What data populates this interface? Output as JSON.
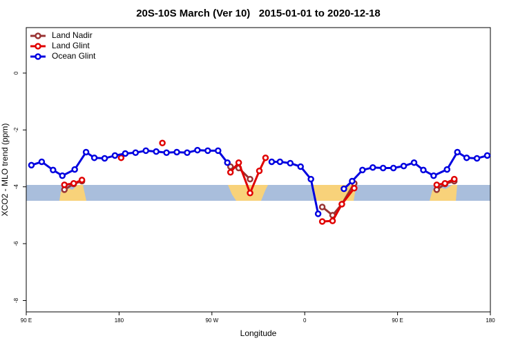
{
  "chart_data": {
    "type": "line",
    "title": "20S-10S March (Ver 10)   2015-01-01 to 2020-12-18",
    "x_label": "Longitude",
    "y_label": "XCO2 - MLO trend (ppm)",
    "xlim": [
      90,
      540
    ],
    "ylim": [
      -8.4,
      1.6
    ],
    "xticks": [
      {
        "value": 90,
        "label": "90 E"
      },
      180,
      {
        "value": 270,
        "label": "90 W"
      },
      {
        "value": 360,
        "label": "0"
      },
      {
        "value": 450,
        "label": "90 E"
      },
      {
        "value": 540,
        "label": "180"
      }
    ],
    "yticks": [
      0,
      -2,
      -4,
      -6,
      -8
    ],
    "legend": "top-left",
    "series": [
      {
        "name": "Land Nadir",
        "color": "#993333",
        "x": [
          127,
          136,
          144,
          null,
          288,
          296,
          307,
          null,
          377,
          387,
          396,
          408,
          null,
          488,
          496,
          505
        ],
        "values": [
          -4.1,
          -3.9,
          -3.8,
          null,
          -3.29,
          -3.34,
          -3.73,
          null,
          -4.71,
          -5.0,
          -4.61,
          -3.88,
          null,
          -4.1,
          -3.9,
          -3.8
        ]
      },
      {
        "name": "Land Glint",
        "color": "#e00000",
        "x": [
          127,
          136,
          144,
          null,
          182,
          null,
          222,
          null,
          288,
          296,
          307,
          316,
          322,
          null,
          377,
          387,
          396,
          408,
          null,
          488,
          496,
          505
        ],
        "values": [
          -3.93,
          -3.88,
          -3.76,
          null,
          -2.98,
          null,
          -2.46,
          null,
          -3.49,
          -3.15,
          -4.22,
          -3.44,
          -2.98,
          null,
          -5.22,
          -5.2,
          -4.61,
          -4.05,
          null,
          -3.93,
          -3.88,
          -3.73
        ]
      },
      {
        "name": "Ocean Glint",
        "color": "#0000e0",
        "x": [
          95,
          105,
          116,
          125,
          137,
          148,
          156,
          166,
          176,
          186,
          196,
          206,
          216,
          226,
          236,
          246,
          256,
          266,
          276,
          285,
          null,
          328,
          336,
          346,
          356,
          366,
          373,
          null,
          398,
          406,
          416,
          426,
          436,
          446,
          456,
          466,
          475,
          485,
          498,
          508,
          517,
          527,
          537
        ],
        "values": [
          -3.24,
          -3.12,
          -3.41,
          -3.61,
          -3.39,
          -2.78,
          -2.98,
          -3.0,
          -2.9,
          -2.83,
          -2.8,
          -2.73,
          -2.76,
          -2.8,
          -2.78,
          -2.8,
          -2.71,
          -2.73,
          -2.73,
          -3.15,
          null,
          -3.12,
          -3.12,
          -3.17,
          -3.29,
          -3.73,
          -4.95,
          null,
          -4.07,
          -3.8,
          -3.41,
          -3.32,
          -3.34,
          -3.34,
          -3.27,
          -3.15,
          -3.41,
          -3.61,
          -3.39,
          -2.78,
          -2.98,
          -3.0,
          -2.9
        ]
      }
    ]
  }
}
